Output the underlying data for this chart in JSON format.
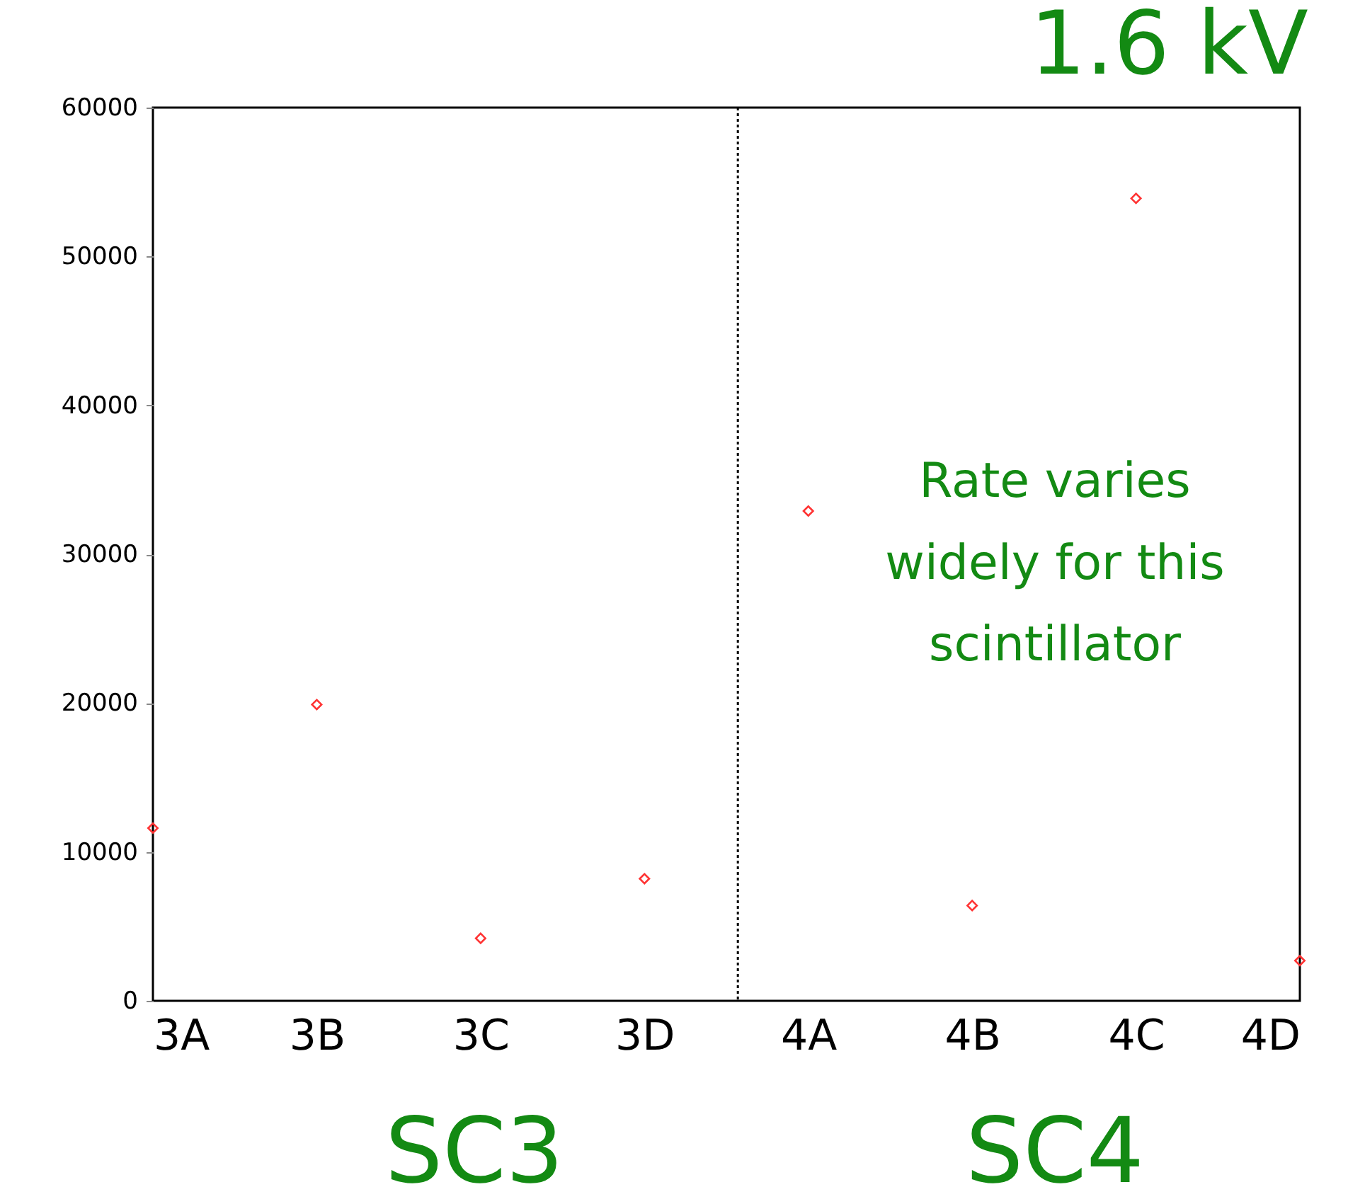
{
  "chart_data": {
    "type": "scatter",
    "title": "1.6 kV",
    "categories": [
      "3A",
      "3B",
      "3C",
      "3D",
      "4A",
      "4B",
      "4C",
      "4D"
    ],
    "series": [
      {
        "color": "#ff3333",
        "values": [
          11600,
          19900,
          4200,
          8200,
          32900,
          6400,
          53900,
          2700
        ]
      }
    ],
    "marker": "diamond",
    "ylim": [
      0,
      60000
    ],
    "yticks": [
      0,
      10000,
      20000,
      30000,
      40000,
      50000,
      60000
    ],
    "grid": false,
    "annotations": [
      "SC3",
      "SC4",
      "Rate varies widely for this scintillator"
    ]
  }
}
